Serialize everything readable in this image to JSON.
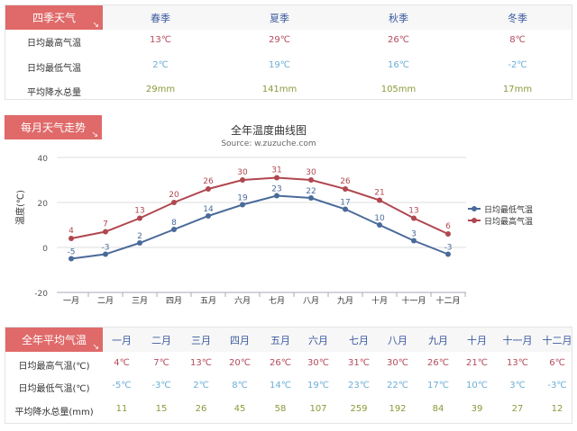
{
  "seasons": {
    "tag": "四季天气",
    "headers": [
      "春季",
      "夏季",
      "秋季",
      "冬季"
    ],
    "rows": [
      {
        "label": "日均最高气温",
        "values": [
          "13℃",
          "29℃",
          "26℃",
          "8℃"
        ]
      },
      {
        "label": "日均最低气温",
        "values": [
          "2℃",
          "19℃",
          "16℃",
          "-2℃"
        ]
      },
      {
        "label": "平均降水总量",
        "values": [
          "29mm",
          "141mm",
          "105mm",
          "17mm"
        ]
      }
    ]
  },
  "trend": {
    "tag": "每月天气走势"
  },
  "chart_data": {
    "type": "line",
    "title": "全年温度曲线图",
    "subtitle": "Source: w.zuzuche.com",
    "ylabel": "温度(℃)",
    "ylim": [
      -20,
      40
    ],
    "yticks": [
      "40",
      "20",
      "0",
      "-20"
    ],
    "categories": [
      "一月",
      "二月",
      "三月",
      "四月",
      "五月",
      "六月",
      "七月",
      "八月",
      "九月",
      "十月",
      "十一月",
      "十二月"
    ],
    "series": [
      {
        "name": "日均最低气温",
        "color": "#4a6a9a",
        "values": [
          -5,
          -3,
          2,
          8,
          14,
          19,
          23,
          22,
          17,
          10,
          3,
          -3
        ]
      },
      {
        "name": "日均最高气温",
        "color": "#b0474f",
        "values": [
          4,
          7,
          13,
          20,
          26,
          30,
          31,
          30,
          26,
          21,
          13,
          6
        ]
      }
    ],
    "legend": "right",
    "grid": true
  },
  "annual": {
    "tag": "全年平均气温",
    "months": [
      "一月",
      "二月",
      "三月",
      "四月",
      "五月",
      "六月",
      "七月",
      "八月",
      "九月",
      "十月",
      "十一月",
      "十二月"
    ],
    "rows": [
      {
        "label": "日均最高气温(℃)",
        "values": [
          "4℃",
          "7℃",
          "13℃",
          "20℃",
          "26℃",
          "30℃",
          "31℃",
          "30℃",
          "26℃",
          "21℃",
          "13℃",
          "6℃"
        ]
      },
      {
        "label": "日均最低气温(℃)",
        "values": [
          "-5℃",
          "-3℃",
          "2℃",
          "8℃",
          "14℃",
          "19℃",
          "23℃",
          "22℃",
          "17℃",
          "10℃",
          "3℃",
          "-3℃"
        ]
      },
      {
        "label": "平均降水总量(mm)",
        "values": [
          "11",
          "15",
          "26",
          "45",
          "58",
          "107",
          "259",
          "192",
          "84",
          "39",
          "27",
          "12"
        ]
      }
    ]
  }
}
